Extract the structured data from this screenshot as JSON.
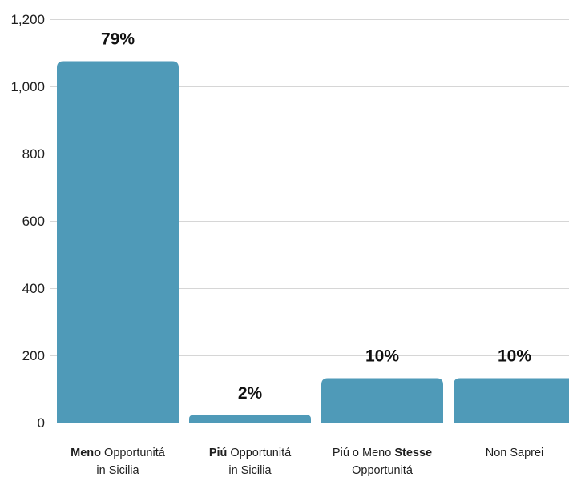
{
  "chart_data": {
    "type": "bar",
    "categories": [
      [
        [
          {
            "t": "Meno",
            "b": true
          },
          {
            "t": " Opportunitá",
            "b": false
          }
        ],
        [
          {
            "t": "in Sicilia",
            "b": false
          }
        ]
      ],
      [
        [
          {
            "t": "Piú",
            "b": true
          },
          {
            "t": " Opportunitá",
            "b": false
          }
        ],
        [
          {
            "t": "in Sicilia",
            "b": false
          }
        ]
      ],
      [
        [
          {
            "t": "Piú o Meno ",
            "b": false
          },
          {
            "t": "Stesse",
            "b": true
          }
        ],
        [
          {
            "t": "Opportunitá",
            "b": false
          }
        ]
      ],
      [
        [
          {
            "t": "Non Saprei",
            "b": false
          }
        ]
      ]
    ],
    "values": [
      1075,
      22,
      132,
      132
    ],
    "data_labels": [
      "79%",
      "2%",
      "10%",
      "10%"
    ],
    "yticks": [
      "0",
      "200",
      "400",
      "600",
      "800",
      "1,000",
      "1,200"
    ],
    "ylim": [
      0,
      1200
    ],
    "grid": true,
    "legend": "none",
    "colors": {
      "bar": "#4f9ab8",
      "grid": "#d6d6d6",
      "text": "#1e1e1e"
    }
  }
}
